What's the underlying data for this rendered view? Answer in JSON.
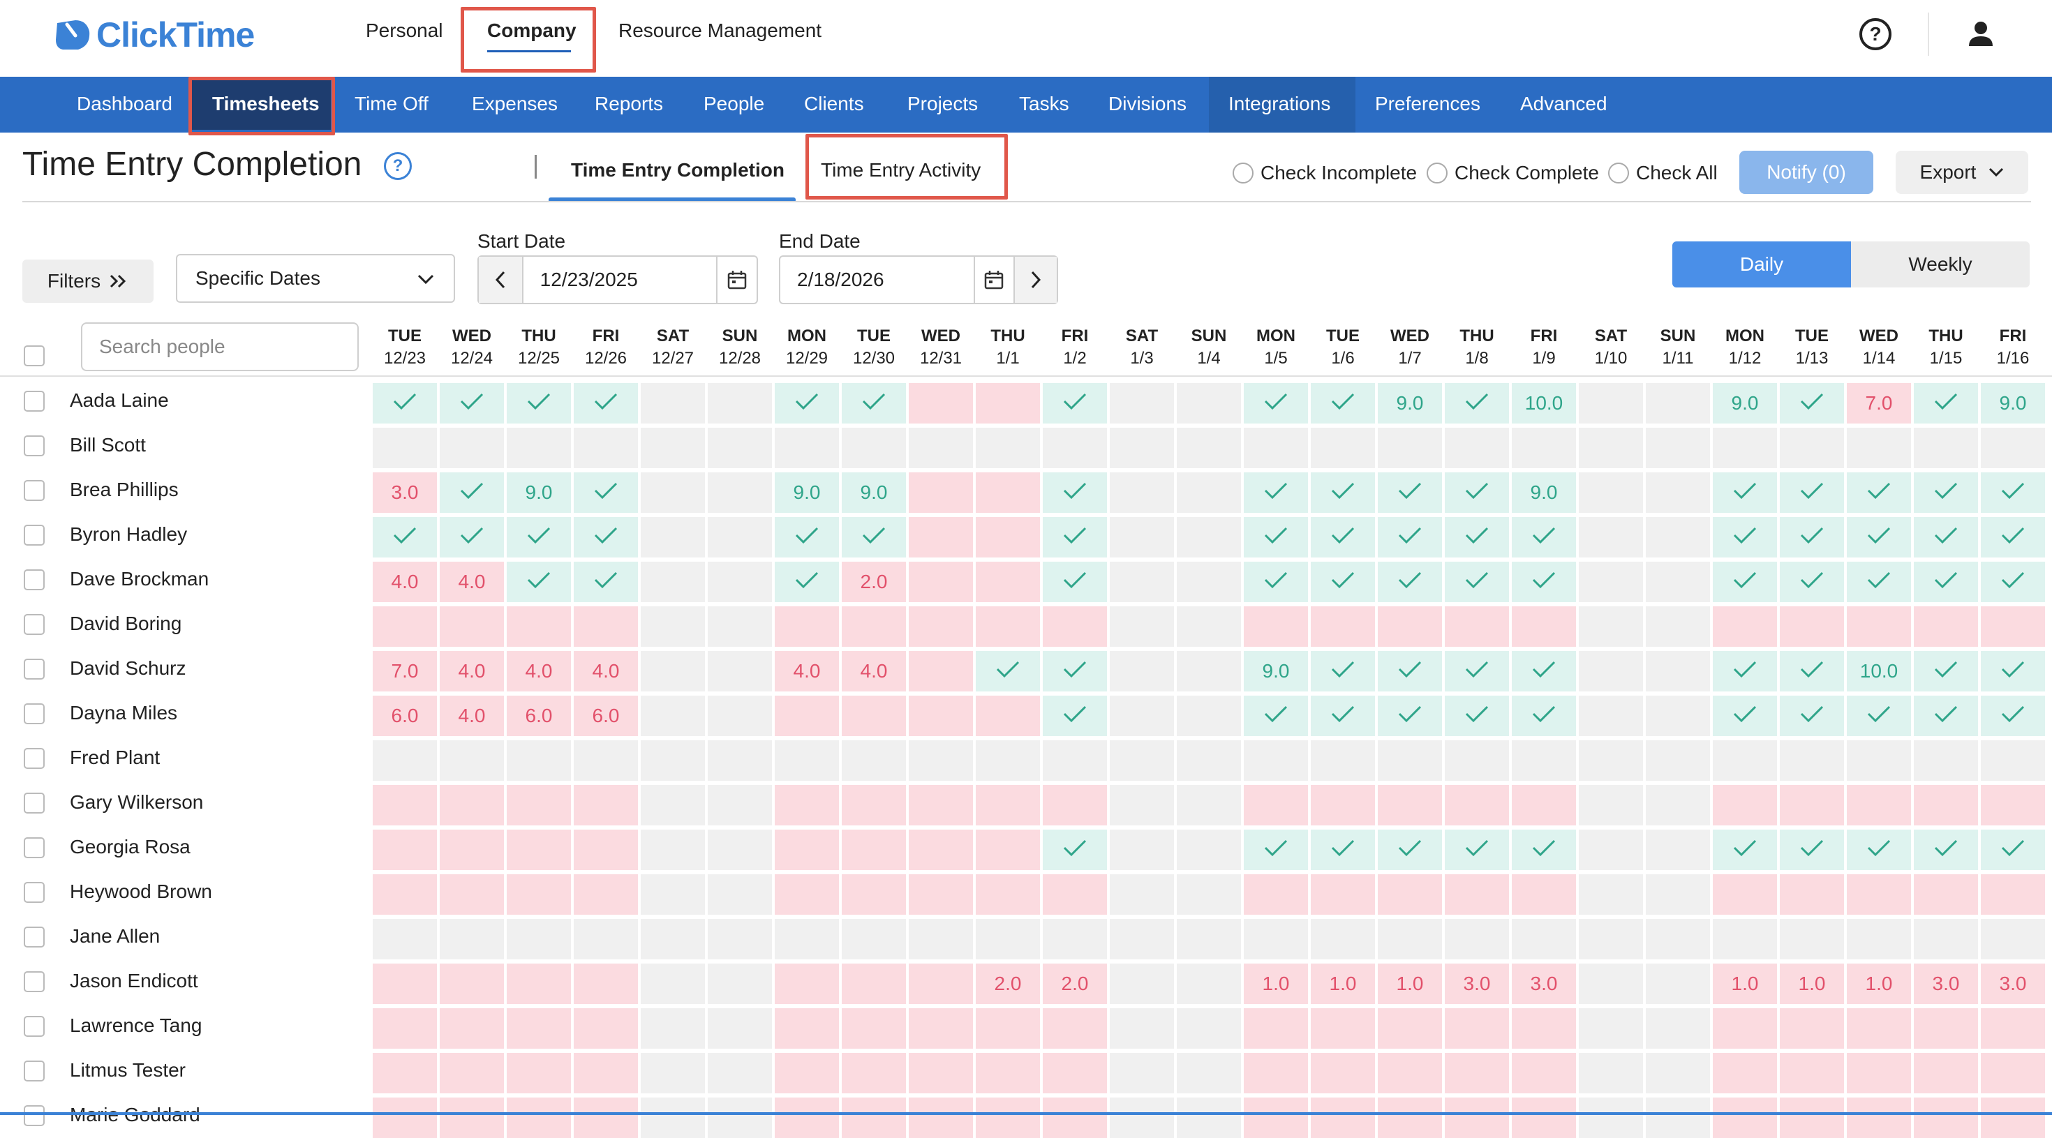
{
  "app": {
    "brand": "ClickTime",
    "top_tabs": [
      "Personal",
      "Company",
      "Resource Management"
    ],
    "nav": [
      "Dashboard",
      "Timesheets",
      "Time Off",
      "Expenses",
      "Reports",
      "People",
      "Clients",
      "Projects",
      "Tasks",
      "Divisions",
      "Integrations",
      "Preferences",
      "Advanced"
    ],
    "accent": "#2b6cc3"
  },
  "page": {
    "title": "Time Entry Completion",
    "subtabs": [
      "Time Entry Completion",
      "Time Entry Activity"
    ],
    "check_options": [
      "Check Incomplete",
      "Check Complete",
      "Check All"
    ],
    "notify_label": "Notify (0)",
    "export_label": "Export"
  },
  "filters": {
    "filters_label": "Filters",
    "date_mode": "Specific Dates",
    "start_label": "Start Date",
    "start_value": "12/23/2025",
    "end_label": "End Date",
    "end_value": "2/18/2026",
    "views": [
      "Daily",
      "Weekly"
    ],
    "search_placeholder": "Search people"
  },
  "columns": [
    {
      "day": "TUE",
      "date": "12/23"
    },
    {
      "day": "WED",
      "date": "12/24"
    },
    {
      "day": "THU",
      "date": "12/25"
    },
    {
      "day": "FRI",
      "date": "12/26"
    },
    {
      "day": "SAT",
      "date": "12/27"
    },
    {
      "day": "SUN",
      "date": "12/28"
    },
    {
      "day": "MON",
      "date": "12/29"
    },
    {
      "day": "TUE",
      "date": "12/30"
    },
    {
      "day": "WED",
      "date": "12/31"
    },
    {
      "day": "THU",
      "date": "1/1"
    },
    {
      "day": "FRI",
      "date": "1/2"
    },
    {
      "day": "SAT",
      "date": "1/3"
    },
    {
      "day": "SUN",
      "date": "1/4"
    },
    {
      "day": "MON",
      "date": "1/5"
    },
    {
      "day": "TUE",
      "date": "1/6"
    },
    {
      "day": "WED",
      "date": "1/7"
    },
    {
      "day": "THU",
      "date": "1/8"
    },
    {
      "day": "FRI",
      "date": "1/9"
    },
    {
      "day": "SAT",
      "date": "1/10"
    },
    {
      "day": "SUN",
      "date": "1/11"
    },
    {
      "day": "MON",
      "date": "1/12"
    },
    {
      "day": "TUE",
      "date": "1/13"
    },
    {
      "day": "WED",
      "date": "1/14"
    },
    {
      "day": "THU",
      "date": "1/15"
    },
    {
      "day": "FRI",
      "date": "1/16"
    }
  ],
  "rows": [
    {
      "name": "Aada Laine",
      "cells": [
        "ok",
        "ok",
        "ok",
        "ok",
        "n",
        "n",
        "ok",
        "ok",
        "m",
        "m",
        "ok",
        "n",
        "n",
        "ok",
        "ok",
        "g:9.0",
        "ok",
        "g:10.0",
        "n",
        "n",
        "g:9.0",
        "ok",
        "r:7.0",
        "ok",
        "g:9.0"
      ]
    },
    {
      "name": "Bill Scott",
      "cells": [
        "n",
        "n",
        "n",
        "n",
        "n",
        "n",
        "n",
        "n",
        "n",
        "n",
        "n",
        "n",
        "n",
        "n",
        "n",
        "n",
        "n",
        "n",
        "n",
        "n",
        "n",
        "n",
        "n",
        "n",
        "n"
      ]
    },
    {
      "name": "Brea Phillips",
      "cells": [
        "r:3.0",
        "ok",
        "g:9.0",
        "ok",
        "n",
        "n",
        "g:9.0",
        "g:9.0",
        "m",
        "m",
        "ok",
        "n",
        "n",
        "ok",
        "ok",
        "ok",
        "ok",
        "g:9.0",
        "n",
        "n",
        "ok",
        "ok",
        "ok",
        "ok",
        "ok"
      ]
    },
    {
      "name": "Byron Hadley",
      "cells": [
        "ok",
        "ok",
        "ok",
        "ok",
        "n",
        "n",
        "ok",
        "ok",
        "m",
        "m",
        "ok",
        "n",
        "n",
        "ok",
        "ok",
        "ok",
        "ok",
        "ok",
        "n",
        "n",
        "ok",
        "ok",
        "ok",
        "ok",
        "ok"
      ]
    },
    {
      "name": "Dave Brockman",
      "cells": [
        "r:4.0",
        "r:4.0",
        "ok",
        "ok",
        "n",
        "n",
        "ok",
        "r:2.0",
        "m",
        "m",
        "ok",
        "n",
        "n",
        "ok",
        "ok",
        "ok",
        "ok",
        "ok",
        "n",
        "n",
        "ok",
        "ok",
        "ok",
        "ok",
        "ok"
      ]
    },
    {
      "name": "David Boring",
      "cells": [
        "m",
        "m",
        "m",
        "m",
        "n",
        "n",
        "m",
        "m",
        "m",
        "m",
        "m",
        "n",
        "n",
        "m",
        "m",
        "m",
        "m",
        "m",
        "n",
        "n",
        "m",
        "m",
        "m",
        "m",
        "m"
      ]
    },
    {
      "name": "David Schurz",
      "cells": [
        "r:7.0",
        "r:4.0",
        "r:4.0",
        "r:4.0",
        "n",
        "n",
        "r:4.0",
        "r:4.0",
        "m",
        "ok",
        "ok",
        "n",
        "n",
        "g:9.0",
        "ok",
        "ok",
        "ok",
        "ok",
        "n",
        "n",
        "ok",
        "ok",
        "g:10.0",
        "ok",
        "ok"
      ]
    },
    {
      "name": "Dayna Miles",
      "cells": [
        "r:6.0",
        "r:4.0",
        "r:6.0",
        "r:6.0",
        "n",
        "n",
        "m",
        "m",
        "m",
        "m",
        "ok",
        "n",
        "n",
        "ok",
        "ok",
        "ok",
        "ok",
        "ok",
        "n",
        "n",
        "ok",
        "ok",
        "ok",
        "ok",
        "ok"
      ]
    },
    {
      "name": "Fred Plant",
      "cells": [
        "n",
        "n",
        "n",
        "n",
        "n",
        "n",
        "n",
        "n",
        "n",
        "n",
        "n",
        "n",
        "n",
        "n",
        "n",
        "n",
        "n",
        "n",
        "n",
        "n",
        "n",
        "n",
        "n",
        "n",
        "n"
      ]
    },
    {
      "name": "Gary Wilkerson",
      "cells": [
        "m",
        "m",
        "m",
        "m",
        "n",
        "n",
        "m",
        "m",
        "m",
        "m",
        "m",
        "n",
        "n",
        "m",
        "m",
        "m",
        "m",
        "m",
        "n",
        "n",
        "m",
        "m",
        "m",
        "m",
        "m"
      ]
    },
    {
      "name": "Georgia Rosa",
      "cells": [
        "m",
        "m",
        "m",
        "m",
        "n",
        "n",
        "m",
        "m",
        "m",
        "m",
        "ok",
        "n",
        "n",
        "ok",
        "ok",
        "ok",
        "ok",
        "ok",
        "n",
        "n",
        "ok",
        "ok",
        "ok",
        "ok",
        "ok"
      ]
    },
    {
      "name": "Heywood Brown",
      "cells": [
        "m",
        "m",
        "m",
        "m",
        "n",
        "n",
        "m",
        "m",
        "m",
        "m",
        "m",
        "n",
        "n",
        "m",
        "m",
        "m",
        "m",
        "m",
        "n",
        "n",
        "m",
        "m",
        "m",
        "m",
        "m"
      ]
    },
    {
      "name": "Jane Allen",
      "cells": [
        "n",
        "n",
        "n",
        "n",
        "n",
        "n",
        "n",
        "n",
        "n",
        "n",
        "n",
        "n",
        "n",
        "n",
        "n",
        "n",
        "n",
        "n",
        "n",
        "n",
        "n",
        "n",
        "n",
        "n",
        "n"
      ]
    },
    {
      "name": "Jason Endicott",
      "cells": [
        "m",
        "m",
        "m",
        "m",
        "n",
        "n",
        "m",
        "m",
        "m",
        "r:2.0",
        "r:2.0",
        "n",
        "n",
        "r:1.0",
        "r:1.0",
        "r:1.0",
        "r:3.0",
        "r:3.0",
        "n",
        "n",
        "r:1.0",
        "r:1.0",
        "r:1.0",
        "r:3.0",
        "r:3.0"
      ]
    },
    {
      "name": "Lawrence Tang",
      "cells": [
        "m",
        "m",
        "m",
        "m",
        "n",
        "n",
        "m",
        "m",
        "m",
        "m",
        "m",
        "n",
        "n",
        "m",
        "m",
        "m",
        "m",
        "m",
        "n",
        "n",
        "m",
        "m",
        "m",
        "m",
        "m"
      ]
    },
    {
      "name": "Litmus Tester",
      "cells": [
        "m",
        "m",
        "m",
        "m",
        "n",
        "n",
        "m",
        "m",
        "m",
        "m",
        "m",
        "n",
        "n",
        "m",
        "m",
        "m",
        "m",
        "m",
        "n",
        "n",
        "m",
        "m",
        "m",
        "m",
        "m"
      ]
    },
    {
      "name": "Marie Goddard",
      "cells": [
        "m",
        "m",
        "m",
        "m",
        "n",
        "n",
        "m",
        "m",
        "m",
        "m",
        "m",
        "n",
        "n",
        "m",
        "m",
        "m",
        "m",
        "m",
        "n",
        "n",
        "m",
        "m",
        "m",
        "m",
        "m"
      ]
    }
  ]
}
